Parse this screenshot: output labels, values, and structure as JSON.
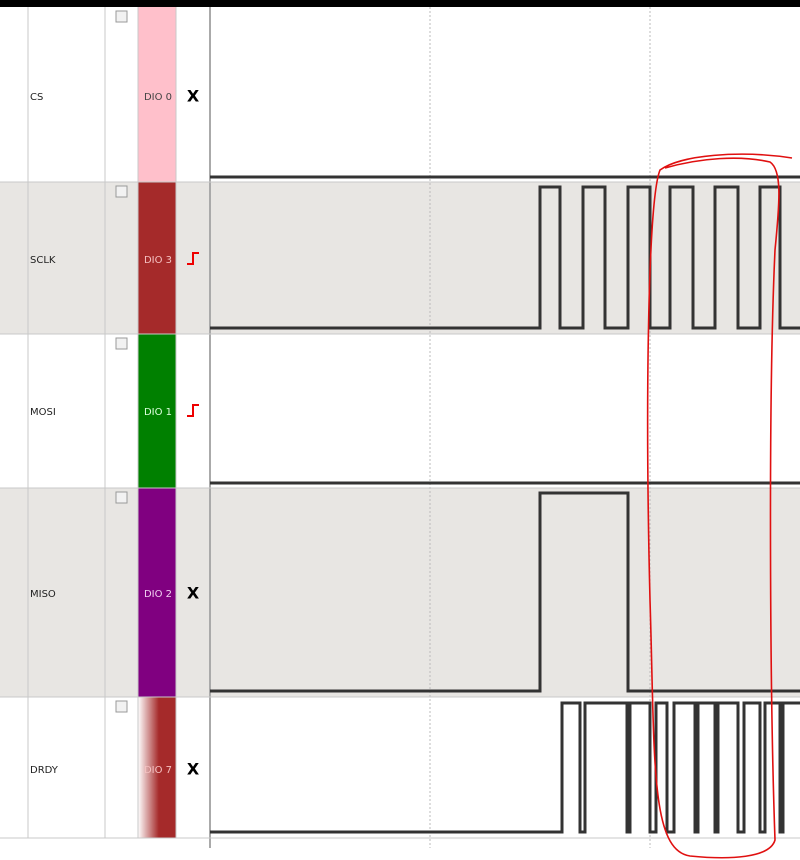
{
  "channels": [
    {
      "name": "CS",
      "dio": "DIO 0",
      "trigger": "X"
    },
    {
      "name": "SCLK",
      "dio": "DIO 3"
    },
    {
      "name": "MOSI",
      "dio": "DIO 1"
    },
    {
      "name": "MISO",
      "dio": "DIO 2",
      "trigger": "X"
    },
    {
      "name": "DRDY",
      "dio": "DIO 7",
      "trigger": "X"
    }
  ]
}
